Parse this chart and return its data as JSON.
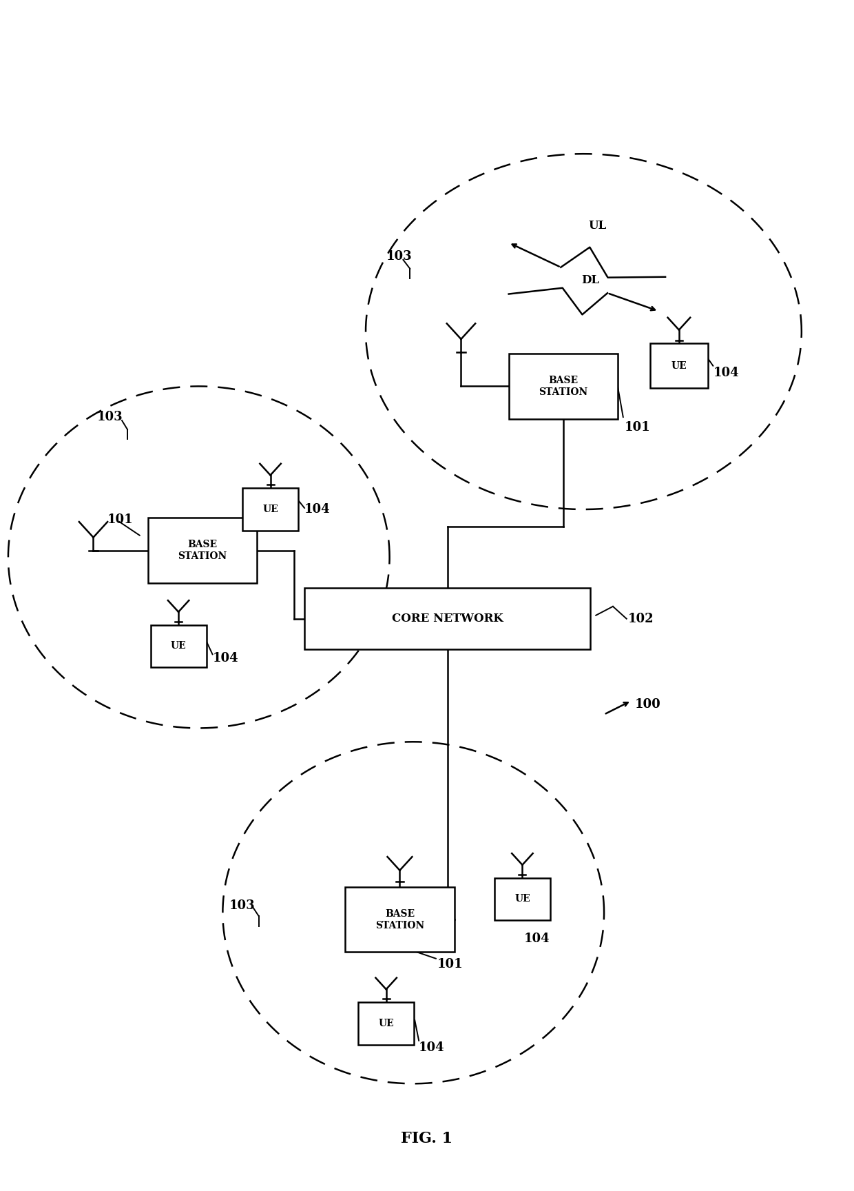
{
  "title": "FIG. 1",
  "bg_color": "#ffffff",
  "fig_label": "100",
  "core_network_label": "102",
  "core_network_text": "CORE NETWORK"
}
